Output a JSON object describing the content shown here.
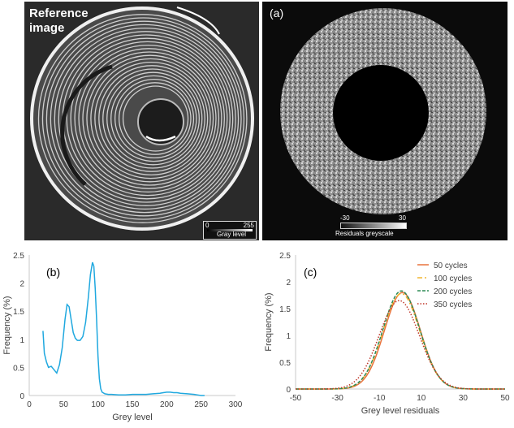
{
  "reference_panel": {
    "title_line1": "Reference",
    "title_line2": "image",
    "colorbar": {
      "min": "0",
      "max": "255",
      "label": "Gray level"
    }
  },
  "residual_panel": {
    "label": "(a)",
    "colorbar": {
      "min": "-30",
      "max": "30",
      "label": "Residuals greyscale"
    }
  },
  "chart_data": [
    {
      "type": "line",
      "panel_label": "(b)",
      "xlabel": "Grey level",
      "ylabel": "Frequency (%)",
      "xlim": [
        0,
        300
      ],
      "ylim": [
        0,
        2.5
      ],
      "xticks": [
        0,
        50,
        100,
        150,
        200,
        250,
        300
      ],
      "yticks": [
        0,
        0.5,
        1,
        1.5,
        2,
        2.5
      ],
      "series": [
        {
          "name": "grey level histogram",
          "color": "#1fa8df",
          "x": [
            20,
            22,
            25,
            28,
            32,
            36,
            40,
            44,
            48,
            52,
            55,
            58,
            61,
            64,
            67,
            70,
            74,
            78,
            82,
            86,
            89,
            92,
            94,
            96,
            98,
            100,
            102,
            104,
            106,
            110,
            115,
            120,
            130,
            140,
            150,
            160,
            170,
            180,
            190,
            195,
            200,
            205,
            210,
            215,
            220,
            230,
            240,
            245,
            250,
            255
          ],
          "y": [
            1.15,
            0.75,
            0.6,
            0.5,
            0.52,
            0.46,
            0.4,
            0.55,
            0.85,
            1.35,
            1.62,
            1.58,
            1.35,
            1.12,
            1.02,
            0.98,
            0.98,
            1.05,
            1.3,
            1.75,
            2.15,
            2.37,
            2.3,
            1.9,
            1.35,
            0.7,
            0.3,
            0.12,
            0.06,
            0.03,
            0.02,
            0.02,
            0.01,
            0.01,
            0.02,
            0.02,
            0.02,
            0.03,
            0.04,
            0.05,
            0.06,
            0.06,
            0.05,
            0.05,
            0.04,
            0.03,
            0.02,
            0.01,
            0.0,
            0.0
          ]
        }
      ]
    },
    {
      "type": "line",
      "panel_label": "(c)",
      "xlabel": "Grey level residuals",
      "ylabel": "Frequency (%)",
      "xlim": [
        -50,
        50
      ],
      "ylim": [
        0,
        2.5
      ],
      "xticks": [
        -50,
        -30,
        -10,
        10,
        30,
        50
      ],
      "yticks": [
        0,
        0.5,
        1,
        1.5,
        2,
        2.5
      ],
      "legend_position": "top-right",
      "series": [
        {
          "name": "50 cycles",
          "color": "#e8723c",
          "dash": "",
          "mean": 1.0,
          "sd": 8.6,
          "peak": 1.8
        },
        {
          "name": "100 cycles",
          "color": "#f2b632",
          "dash": "6 3 2 3",
          "mean": 0.5,
          "sd": 8.8,
          "peak": 1.78
        },
        {
          "name": "200 cycles",
          "color": "#2e8b57",
          "dash": "4 2",
          "mean": 0.5,
          "sd": 8.8,
          "peak": 1.83
        },
        {
          "name": "350 cycles",
          "color": "#c0392b",
          "dash": "1.5 2",
          "mean": -0.5,
          "sd": 9.6,
          "peak": 1.65
        }
      ]
    }
  ]
}
